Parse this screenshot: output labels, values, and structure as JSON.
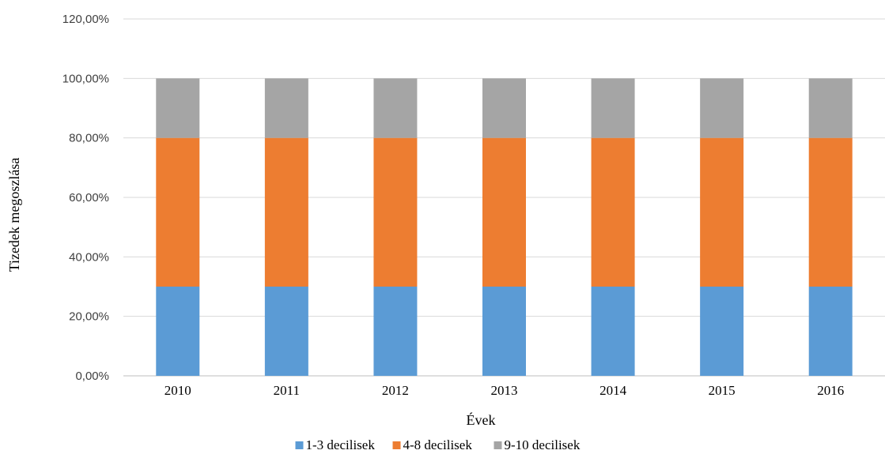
{
  "chart_data": {
    "type": "bar",
    "stacked": true,
    "categories": [
      "2010",
      "2011",
      "2012",
      "2013",
      "2014",
      "2015",
      "2016"
    ],
    "series": [
      {
        "name": "1-3 decilisek",
        "color": "#5b9bd5",
        "values": [
          30,
          30,
          30,
          30,
          30,
          30,
          30
        ]
      },
      {
        "name": "4-8 decilisek",
        "color": "#ed7d31",
        "values": [
          50,
          50,
          50,
          50,
          50,
          50,
          50
        ]
      },
      {
        "name": "9-10 decilisek",
        "color": "#a5a5a5",
        "values": [
          20,
          20,
          20,
          20,
          20,
          20,
          20
        ]
      }
    ],
    "yticks": [
      "0,00%",
      "20,00%",
      "40,00%",
      "60,00%",
      "80,00%",
      "100,00%",
      "120,00%"
    ],
    "ylim": [
      0,
      120
    ],
    "xlabel": "Évek",
    "ylabel": "Tizedek megoszlása",
    "grid": true,
    "legend_position": "bottom"
  }
}
